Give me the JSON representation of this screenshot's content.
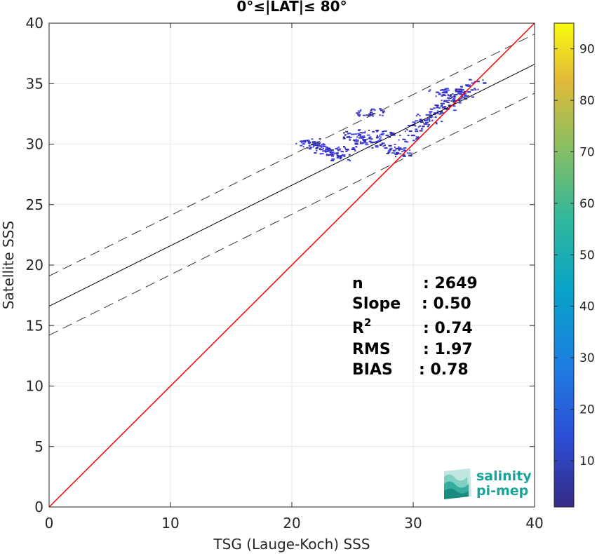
{
  "chart_data": {
    "type": "scatter",
    "title": "0°≤|LAT|≤ 80°",
    "xlabel": "TSG (Lauge-Koch) SSS",
    "ylabel": "Satellite SSS",
    "xlim": [
      0,
      40
    ],
    "ylim": [
      0,
      40
    ],
    "xticks": [
      "0",
      "10",
      "20",
      "30",
      "40"
    ],
    "yticks": [
      "0",
      "5",
      "10",
      "15",
      "20",
      "25",
      "30",
      "35",
      "40"
    ],
    "grid": true,
    "colorbar": {
      "range": [
        1,
        95
      ],
      "ticks": [
        "10",
        "20",
        "30",
        "40",
        "50",
        "60",
        "70",
        "80",
        "90"
      ]
    },
    "lines": {
      "identity": {
        "slope": 1,
        "intercept": 0,
        "color": "#ff0000"
      },
      "regression": {
        "slope": 0.5,
        "intercept": 16.6,
        "color": "#000000"
      },
      "regression_upper": {
        "slope": 0.5,
        "intercept": 19.1,
        "dashed": true
      },
      "regression_lower": {
        "slope": 0.5,
        "intercept": 14.2,
        "dashed": true
      }
    },
    "point_clusters": [
      {
        "x": 21.0,
        "y": 30.1
      },
      {
        "x": 21.5,
        "y": 30.2
      },
      {
        "x": 22.0,
        "y": 29.9
      },
      {
        "x": 22.5,
        "y": 29.6
      },
      {
        "x": 23.0,
        "y": 29.4
      },
      {
        "x": 23.5,
        "y": 29.1
      },
      {
        "x": 24.0,
        "y": 28.9
      },
      {
        "x": 24.5,
        "y": 29.6
      },
      {
        "x": 25.0,
        "y": 30.8
      },
      {
        "x": 25.5,
        "y": 30.3
      },
      {
        "x": 26.0,
        "y": 31.0
      },
      {
        "x": 26.5,
        "y": 30.5
      },
      {
        "x": 27.0,
        "y": 30.0
      },
      {
        "x": 27.5,
        "y": 30.9
      },
      {
        "x": 28.0,
        "y": 29.8
      },
      {
        "x": 28.5,
        "y": 29.5
      },
      {
        "x": 29.0,
        "y": 29.3
      },
      {
        "x": 29.5,
        "y": 30.5
      },
      {
        "x": 30.0,
        "y": 31.3
      },
      {
        "x": 30.5,
        "y": 31.8
      },
      {
        "x": 31.0,
        "y": 32.3
      },
      {
        "x": 31.5,
        "y": 32.0
      },
      {
        "x": 32.0,
        "y": 32.8
      },
      {
        "x": 32.5,
        "y": 33.0
      },
      {
        "x": 33.0,
        "y": 33.4
      },
      {
        "x": 33.5,
        "y": 33.8
      },
      {
        "x": 34.0,
        "y": 34.2
      },
      {
        "x": 34.5,
        "y": 34.6
      },
      {
        "x": 35.0,
        "y": 35.1
      },
      {
        "x": 26.0,
        "y": 32.6
      },
      {
        "x": 27.0,
        "y": 32.7
      },
      {
        "x": 32.0,
        "y": 34.3
      },
      {
        "x": 33.0,
        "y": 34.4
      }
    ]
  },
  "stats": {
    "n_label": "n",
    "n_value": ": 2649",
    "slope_label": "Slope",
    "slope_value": ": 0.50",
    "r2_label": "R",
    "r2_sup": "2",
    "r2_value": ": 0.74",
    "rms_label": "RMS",
    "rms_value": ": 1.97",
    "bias_label": "BIAS",
    "bias_value": ": 0.78"
  },
  "logo": {
    "line1": "salinity",
    "line2": "pi-mep",
    "color": "#1aa39a"
  }
}
